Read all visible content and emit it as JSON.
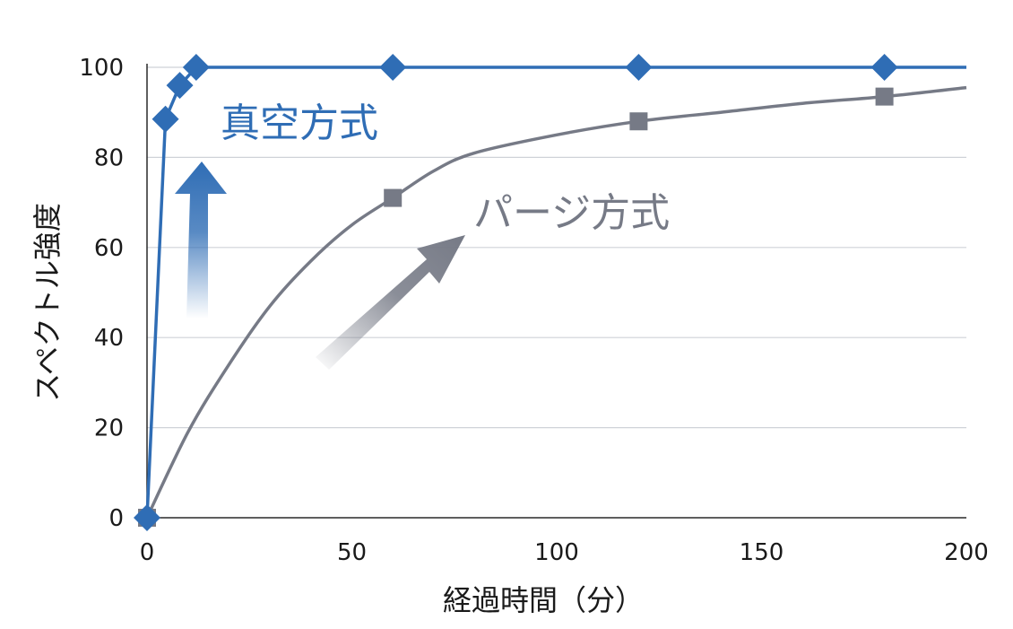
{
  "chart_data": {
    "type": "line",
    "xlabel": "経過時間（分）",
    "ylabel": "スペクトル強度",
    "xlim": [
      0,
      200
    ],
    "ylim": [
      0,
      100
    ],
    "x_ticks": [
      0,
      50,
      100,
      150,
      200
    ],
    "y_ticks": [
      0,
      20,
      40,
      60,
      80,
      100
    ],
    "grid": "horizontal",
    "series": [
      {
        "name": "真空方式",
        "color": "#2f6db5",
        "marker": "diamond",
        "points": [
          [
            0,
            0
          ],
          [
            4.5,
            88.5
          ],
          [
            8,
            96
          ],
          [
            12,
            100
          ],
          [
            60,
            100
          ],
          [
            120,
            100
          ],
          [
            180,
            100
          ]
        ],
        "line_extends_to_x": 200
      },
      {
        "name": "パージ方式",
        "color": "#767a86",
        "marker": "square",
        "points": [
          [
            0,
            0
          ],
          [
            60,
            71
          ],
          [
            120,
            88
          ],
          [
            180,
            93.5
          ]
        ],
        "curve": [
          [
            0,
            0
          ],
          [
            10,
            19
          ],
          [
            20,
            34
          ],
          [
            30,
            47
          ],
          [
            40,
            57
          ],
          [
            50,
            65
          ],
          [
            60,
            71
          ],
          [
            70,
            77
          ],
          [
            80,
            81
          ],
          [
            100,
            85
          ],
          [
            120,
            88
          ],
          [
            140,
            90
          ],
          [
            160,
            92
          ],
          [
            180,
            93.5
          ],
          [
            200,
            95.5
          ]
        ]
      }
    ],
    "annotations": [
      "up-arrow pointing to 真空方式",
      "diagonal arrow pointing to パージ方式"
    ]
  }
}
